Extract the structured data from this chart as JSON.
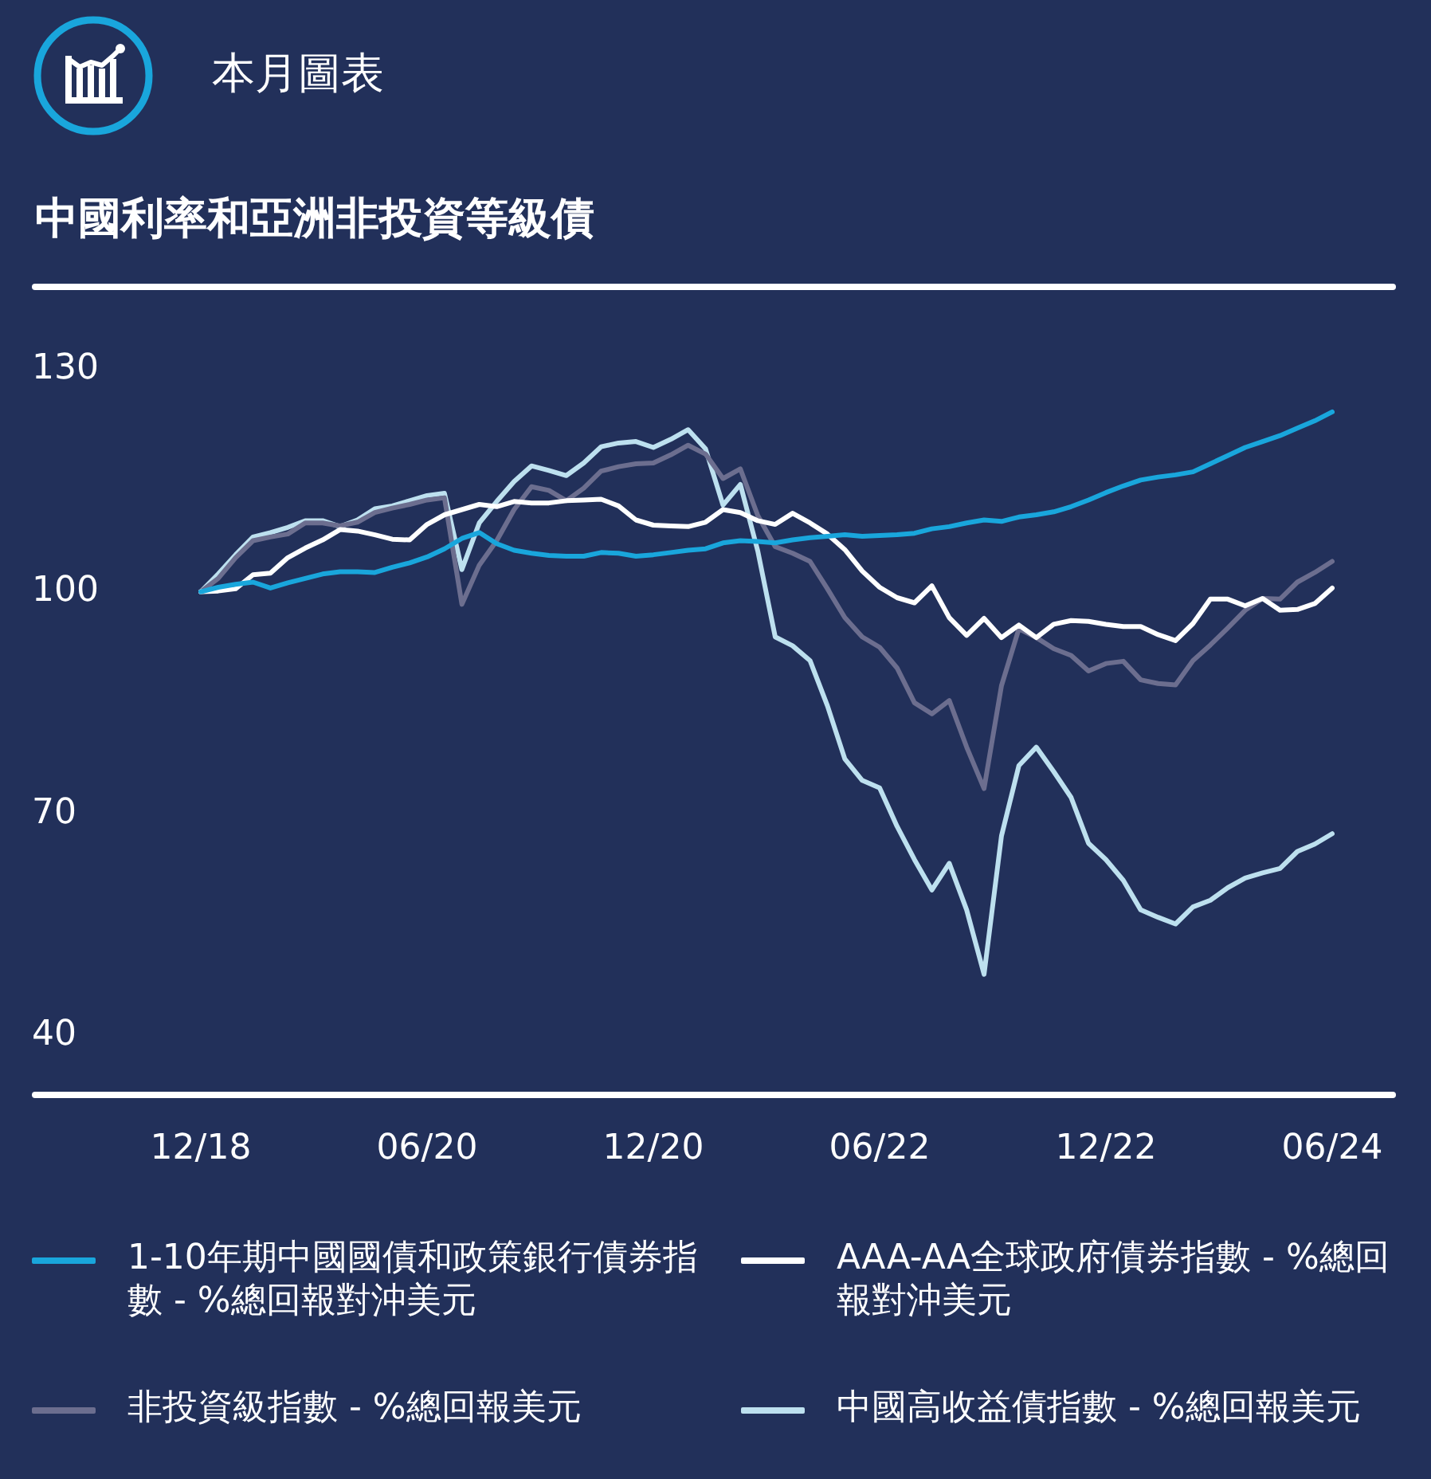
{
  "chart_data": {
    "type": "line",
    "title": "中國利率和亞洲非投資等級債",
    "annotations": [
      "本月圖表"
    ],
    "categories": [
      "12/18",
      null,
      null,
      null,
      null,
      null,
      null,
      null,
      null,
      null,
      null,
      null,
      null,
      "06/20",
      null,
      null,
      null,
      null,
      null,
      null,
      null,
      null,
      null,
      null,
      null,
      null,
      "12/20",
      null,
      null,
      null,
      null,
      null,
      null,
      null,
      null,
      null,
      null,
      null,
      null,
      "06/22",
      null,
      null,
      null,
      null,
      null,
      null,
      null,
      null,
      null,
      null,
      null,
      null,
      "12/22",
      null,
      null,
      null,
      null,
      null,
      null,
      null,
      null,
      null,
      null,
      null,
      null,
      "06/24"
    ],
    "series": [
      {
        "name": "1-10年期中國國債和政策銀行債券指數 - %總回報對沖美元",
        "color": "#19a6dc",
        "values": [
          100,
          100.6,
          101.0,
          101.3,
          100.5,
          101.2,
          101.8,
          102.4,
          102.7,
          102.7,
          102.6,
          103.3,
          103.9,
          104.7,
          105.8,
          107.2,
          108.0,
          106.5,
          105.6,
          105.2,
          104.9,
          104.8,
          104.8,
          105.3,
          105.2,
          104.8,
          105.0,
          105.3,
          105.6,
          105.8,
          106.6,
          106.9,
          106.8,
          106.6,
          107.0,
          107.3,
          107.5,
          107.7,
          107.5,
          107.6,
          107.7,
          107.9,
          108.5,
          108.8,
          109.3,
          109.7,
          109.5,
          110.1,
          110.4,
          110.8,
          111.5,
          112.4,
          113.4,
          114.3,
          115.1,
          115.5,
          115.8,
          116.2,
          117.3,
          118.4,
          119.5,
          120.3,
          121.1,
          122.1,
          123.1,
          124.3
        ]
      },
      {
        "name": "AAA-AA全球政府債券指數 - %總回報對沖美元",
        "color": "#ffffff",
        "values": [
          100,
          100.1,
          100.4,
          102.3,
          102.5,
          104.6,
          105.9,
          107.0,
          108.4,
          108.2,
          107.7,
          107.1,
          107.0,
          109.1,
          110.4,
          111.1,
          111.8,
          111.5,
          112.2,
          112.0,
          112.0,
          112.3,
          112.4,
          112.5,
          111.6,
          109.7,
          109.0,
          108.9,
          108.8,
          109.4,
          111.1,
          110.7,
          109.6,
          109.1,
          110.6,
          109.3,
          107.8,
          105.7,
          102.8,
          100.6,
          99.2,
          98.5,
          100.8,
          96.5,
          94.1,
          96.4,
          93.8,
          95.5,
          93.8,
          95.6,
          96.1,
          96.0,
          95.6,
          95.3,
          95.3,
          94.2,
          93.4,
          95.7,
          99.0,
          99.0,
          98.1,
          99.1,
          97.5,
          97.6,
          98.4,
          100.5
        ]
      },
      {
        "name": "非投資級指數 - %總回報美元",
        "color": "#6c6e8f",
        "values": [
          100,
          101.8,
          104.6,
          106.9,
          107.4,
          107.8,
          109.3,
          109.3,
          108.9,
          109.4,
          110.7,
          111.3,
          111.8,
          112.4,
          112.7,
          98.3,
          103.6,
          106.9,
          111.1,
          114.2,
          113.7,
          112.3,
          114.0,
          116.3,
          116.9,
          117.3,
          117.4,
          118.5,
          119.8,
          118.6,
          115.3,
          116.6,
          110.3,
          106.1,
          105.2,
          104.1,
          100.4,
          96.5,
          93.9,
          92.5,
          89.7,
          85.0,
          83.5,
          85.3,
          79.0,
          73.4,
          87.3,
          95.0,
          93.8,
          92.3,
          91.4,
          89.3,
          90.3,
          90.6,
          88.1,
          87.6,
          87.4,
          90.7,
          92.8,
          95.1,
          97.5,
          99.1,
          99.0,
          101.3,
          102.6,
          104.1
        ]
      },
      {
        "name": "中國高收益債指數 - %總回報美元",
        "color": "#bde0ef",
        "values": [
          100,
          102.4,
          105.0,
          107.4,
          108.0,
          108.7,
          109.6,
          109.6,
          108.8,
          109.7,
          111.2,
          111.6,
          112.3,
          113.0,
          113.3,
          103.0,
          109.3,
          112.2,
          114.9,
          117.0,
          116.4,
          115.7,
          117.4,
          119.6,
          120.1,
          120.3,
          119.5,
          120.6,
          121.9,
          119.3,
          111.7,
          114.5,
          105.5,
          93.9,
          92.7,
          90.7,
          84.6,
          77.4,
          74.5,
          73.5,
          68.3,
          63.8,
          59.7,
          63.3,
          57.0,
          48.3,
          67.0,
          76.5,
          79.0,
          75.7,
          72.2,
          66.0,
          63.8,
          61.0,
          57.0,
          56.0,
          55.1,
          57.4,
          58.3,
          60.0,
          61.3,
          62.0,
          62.6,
          64.9,
          65.9,
          67.3
        ]
      }
    ],
    "ylim": [
      32,
      130
    ],
    "yticks": [
      40,
      70,
      100,
      130
    ],
    "grid": false,
    "legend": "bottom",
    "marker": "none",
    "line_style": "solid"
  }
}
